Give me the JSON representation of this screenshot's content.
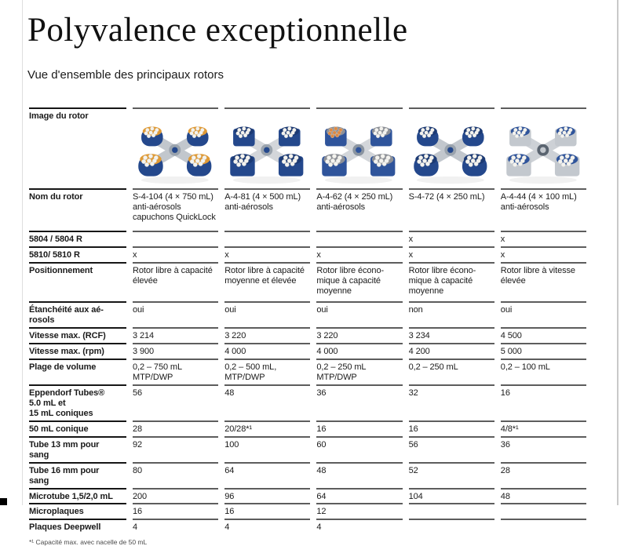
{
  "page": {
    "title": "Polyvalence exceptionnelle",
    "subtitle": "Vue d'ensemble des principaux rotors",
    "footnote": "*¹ Capacité max. avec nacelle de 50 mL"
  },
  "table": {
    "image_row_label": "Image du rotor",
    "rows": [
      {
        "label": "Nom du rotor",
        "values": [
          "S-4-104 (4 × 750 mL)\nanti-aérosols\ncapuchons QuickLock",
          "A-4-81 (4 × 500 mL)\nanti-aérosols",
          "A-4-62 (4 × 250 mL)\nanti-aérosols",
          "S-4-72 (4 × 250 mL)",
          "A-4-44 (4 × 100 mL)\nanti-aérosols"
        ]
      },
      {
        "label": "5804 / 5804 R",
        "values": [
          "",
          "",
          "",
          "x",
          "x"
        ]
      },
      {
        "label": "5810/ 5810 R",
        "values": [
          "x",
          "x",
          "x",
          "x",
          "x"
        ]
      },
      {
        "label": "Positionnement",
        "values": [
          "Rotor libre à capacité\nélevée",
          "Rotor libre à capacité\nmoyenne et élevée",
          "Rotor libre écono-\nmique à capacité\nmoyenne",
          "Rotor libre écono-\nmique à capacité\nmoyenne",
          "Rotor libre à vitesse\nélevée"
        ]
      },
      {
        "label": "Étanchéité aux aé-\nrosols",
        "values": [
          "oui",
          "oui",
          "oui",
          "non",
          "oui"
        ]
      },
      {
        "label": "Vitesse max. (RCF)",
        "values": [
          "3 214",
          "3 220",
          "3 220",
          "3 234",
          "4 500"
        ]
      },
      {
        "label": "Vitesse max. (rpm)",
        "values": [
          "3 900",
          "4 000",
          "4 000",
          "4 200",
          "5 000"
        ]
      },
      {
        "label": "Plage de volume",
        "values": [
          "0,2 – 750 mL\nMTP/DWP",
          "0,2 – 500 mL,\nMTP/DWP",
          "0,2 – 250 mL\nMTP/DWP",
          "0,2 – 250 mL",
          "0,2 – 100 mL"
        ]
      },
      {
        "label": "Eppendorf Tubes®\n5.0 mL et\n15 mL coniques",
        "values": [
          "56",
          "48",
          "36",
          "32",
          "16"
        ]
      },
      {
        "label": "50 mL conique",
        "values": [
          "28",
          "20/28*¹",
          "16",
          "16",
          "4/8*¹"
        ]
      },
      {
        "label": "Tube 13 mm pour\nsang",
        "values": [
          "92",
          "100",
          "60",
          "56",
          "36"
        ]
      },
      {
        "label": "Tube 16 mm pour\nsang",
        "values": [
          "80",
          "64",
          "48",
          "52",
          "28"
        ]
      },
      {
        "label": "Microtube 1,5/2,0 mL",
        "values": [
          "200",
          "96",
          "64",
          "104",
          "48"
        ]
      },
      {
        "label": "Microplaques",
        "values": [
          "16",
          "16",
          "12",
          "",
          ""
        ]
      },
      {
        "label": "Plaques Deepwell",
        "values": [
          "4",
          "4",
          "4",
          "",
          ""
        ]
      }
    ]
  },
  "rotors": [
    {
      "id": "rotor-s-4-104",
      "shape": "round",
      "cross": "#c2c7cd",
      "bucket": "#24488c",
      "rim": "#e09a35",
      "tube": "#f4f3ef",
      "hub": "#9aa3ad"
    },
    {
      "id": "rotor-a-4-81",
      "shape": "square",
      "cross": "#d3d6da",
      "bucket": "#24488c",
      "rim": "#1c3a74",
      "tube": "#f4f3ef",
      "hub": "#9aa3ad"
    },
    {
      "id": "rotor-a-4-62",
      "shape": "square",
      "cross": "#d3d6da",
      "bucket": "#2f549b",
      "rim": "#8d9097",
      "tube": "#f4f3ef",
      "alt_tube": "#dd8a44",
      "hub": "#8a94a0"
    },
    {
      "id": "rotor-s-4-72",
      "shape": "round",
      "cross": "#c2c7cd",
      "bucket": "#24488c",
      "rim": "#1c3a74",
      "tube": "#f4f3ef",
      "hub": "#9aa3ad"
    },
    {
      "id": "rotor-a-4-44",
      "shape": "square",
      "cross": "#cdd1d6",
      "bucket": "#c3c8ce",
      "rim": "#2f549b",
      "tube": "#f4f3ef",
      "hub": "#5a6470"
    }
  ]
}
